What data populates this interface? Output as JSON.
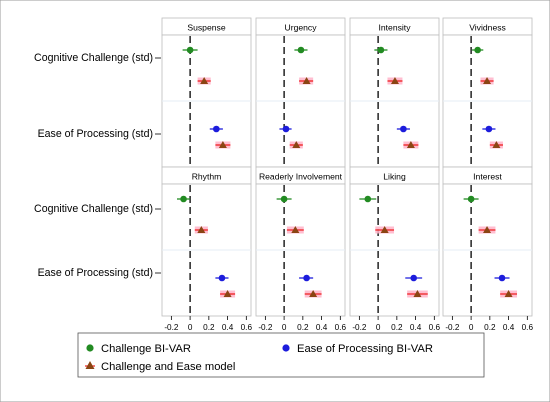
{
  "chart_data": {
    "type": "forest-plot",
    "rows": [
      "Cognitive Challenge (std)",
      "Ease of Processing (std)"
    ],
    "x_ticks": [
      -0.2,
      0,
      0.2,
      0.4,
      0.6
    ],
    "x_tick_labels": [
      "-0.2",
      "0",
      "0.2",
      "0.4",
      "0.6"
    ],
    "xlim": [
      -0.3,
      0.65
    ],
    "reference_line_x": 0,
    "grid": false,
    "legend_position": "bottom",
    "series": [
      {
        "key": "challenge_bivar",
        "name": "Challenge BI-VAR",
        "marker": "circle",
        "color": "#228b22",
        "legend_label": "Challenge BI-VAR"
      },
      {
        "key": "ease_bivar",
        "name": "Ease of Processing BI-VAR",
        "marker": "circle",
        "color": "#1c1cdc",
        "legend_label": "Ease of Processing BI-VAR"
      },
      {
        "key": "model",
        "name": "Challenge and Ease model",
        "marker": "triangle",
        "legend_label": "Challenge and Ease model"
      }
    ],
    "panels": [
      {
        "title": "Suspense",
        "cog": {
          "bivar": {
            "v": 0.0,
            "lo": -0.08,
            "hi": 0.08
          },
          "model": {
            "v": 0.15,
            "lo": 0.08,
            "hi": 0.22
          }
        },
        "ease": {
          "bivar": {
            "v": 0.28,
            "lo": 0.21,
            "hi": 0.35
          },
          "model": {
            "v": 0.35,
            "lo": 0.27,
            "hi": 0.43
          }
        }
      },
      {
        "title": "Urgency",
        "cog": {
          "bivar": {
            "v": 0.18,
            "lo": 0.11,
            "hi": 0.25
          },
          "model": {
            "v": 0.24,
            "lo": 0.16,
            "hi": 0.31
          }
        },
        "ease": {
          "bivar": {
            "v": 0.02,
            "lo": -0.05,
            "hi": 0.08
          },
          "model": {
            "v": 0.13,
            "lo": 0.06,
            "hi": 0.2
          }
        }
      },
      {
        "title": "Intensity",
        "cog": {
          "bivar": {
            "v": 0.03,
            "lo": -0.04,
            "hi": 0.1
          },
          "model": {
            "v": 0.18,
            "lo": 0.1,
            "hi": 0.26
          }
        },
        "ease": {
          "bivar": {
            "v": 0.27,
            "lo": 0.2,
            "hi": 0.34
          },
          "model": {
            "v": 0.35,
            "lo": 0.27,
            "hi": 0.43
          }
        }
      },
      {
        "title": "Vividness",
        "cog": {
          "bivar": {
            "v": 0.07,
            "lo": 0.01,
            "hi": 0.13
          },
          "model": {
            "v": 0.17,
            "lo": 0.1,
            "hi": 0.24
          }
        },
        "ease": {
          "bivar": {
            "v": 0.19,
            "lo": 0.12,
            "hi": 0.26
          },
          "model": {
            "v": 0.27,
            "lo": 0.2,
            "hi": 0.34
          }
        }
      },
      {
        "title": "Rhythm",
        "cog": {
          "bivar": {
            "v": -0.07,
            "lo": -0.14,
            "hi": 0.0
          },
          "model": {
            "v": 0.12,
            "lo": 0.05,
            "hi": 0.19
          }
        },
        "ease": {
          "bivar": {
            "v": 0.34,
            "lo": 0.27,
            "hi": 0.41
          },
          "model": {
            "v": 0.4,
            "lo": 0.32,
            "hi": 0.48
          }
        }
      },
      {
        "title": "Readerly Involvement",
        "cog": {
          "bivar": {
            "v": 0.0,
            "lo": -0.08,
            "hi": 0.08
          },
          "model": {
            "v": 0.12,
            "lo": 0.03,
            "hi": 0.21
          }
        },
        "ease": {
          "bivar": {
            "v": 0.24,
            "lo": 0.16,
            "hi": 0.31
          },
          "model": {
            "v": 0.31,
            "lo": 0.22,
            "hi": 0.4
          }
        }
      },
      {
        "title": "Liking",
        "cog": {
          "bivar": {
            "v": -0.11,
            "lo": -0.2,
            "hi": -0.02
          },
          "model": {
            "v": 0.07,
            "lo": -0.03,
            "hi": 0.17
          }
        },
        "ease": {
          "bivar": {
            "v": 0.38,
            "lo": 0.29,
            "hi": 0.47
          },
          "model": {
            "v": 0.42,
            "lo": 0.31,
            "hi": 0.53
          }
        }
      },
      {
        "title": "Interest",
        "cog": {
          "bivar": {
            "v": 0.0,
            "lo": -0.08,
            "hi": 0.08
          },
          "model": {
            "v": 0.17,
            "lo": 0.08,
            "hi": 0.26
          }
        },
        "ease": {
          "bivar": {
            "v": 0.33,
            "lo": 0.25,
            "hi": 0.41
          },
          "model": {
            "v": 0.4,
            "lo": 0.31,
            "hi": 0.49
          }
        }
      }
    ]
  }
}
